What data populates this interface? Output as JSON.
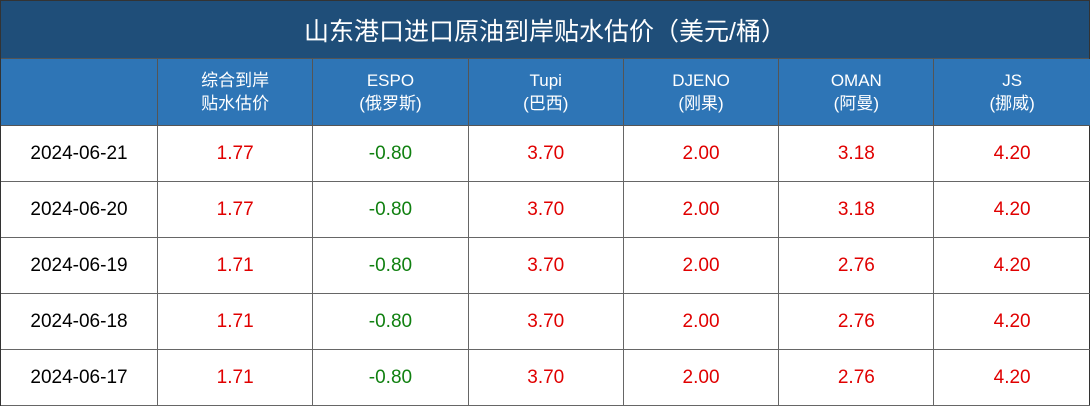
{
  "title": "山东港口进口原油到岸贴水估价（美元/桶）",
  "table": {
    "headers": [
      [
        "综合到岸",
        "贴水估价"
      ],
      [
        "ESPO",
        "(俄罗斯)"
      ],
      [
        "Tupi",
        "(巴西)"
      ],
      [
        "DJENO",
        "(刚果)"
      ],
      [
        "OMAN",
        "(阿曼)"
      ],
      [
        "JS",
        "(挪威)"
      ]
    ],
    "rows": [
      [
        "2024-06-21",
        "1.77",
        "-0.80",
        "3.70",
        "2.00",
        "3.18",
        "4.20"
      ],
      [
        "2024-06-20",
        "1.77",
        "-0.80",
        "3.70",
        "2.00",
        "3.18",
        "4.20"
      ],
      [
        "2024-06-19",
        "1.71",
        "-0.80",
        "3.70",
        "2.00",
        "2.76",
        "4.20"
      ],
      [
        "2024-06-18",
        "1.71",
        "-0.80",
        "3.70",
        "2.00",
        "2.76",
        "4.20"
      ],
      [
        "2024-06-17",
        "1.71",
        "-0.80",
        "3.70",
        "2.00",
        "2.76",
        "4.20"
      ]
    ]
  }
}
